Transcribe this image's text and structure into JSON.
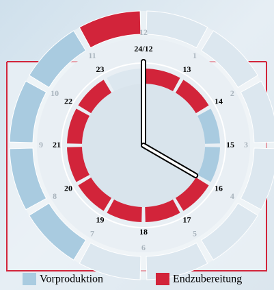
{
  "clock": {
    "outer_labels": [
      "1",
      "2",
      "3",
      "4",
      "5",
      "6",
      "7",
      "8",
      "9",
      "10",
      "11",
      "12"
    ],
    "inner_labels": [
      "13",
      "14",
      "15",
      "16",
      "17",
      "18",
      "19",
      "20",
      "21",
      "22",
      "23",
      "24/12"
    ]
  },
  "legend": [
    {
      "label": "Vorproduktion",
      "color": "#a9cbe0"
    },
    {
      "label": "Endzubereitung",
      "color": "#d2243a"
    }
  ]
}
